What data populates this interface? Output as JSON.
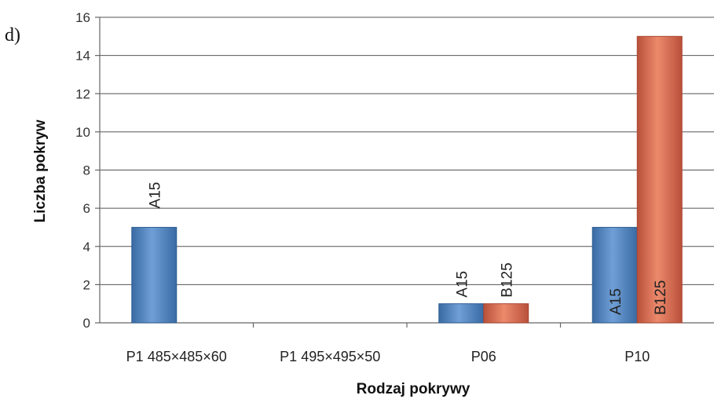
{
  "panel_label": "d)",
  "chart_data": {
    "type": "bar",
    "xlabel": "Rodzaj pokrywy",
    "ylabel": "Liczba pokryw",
    "ylim": [
      0,
      16
    ],
    "yticks": [
      0,
      2,
      4,
      6,
      8,
      10,
      12,
      14,
      16
    ],
    "grid": true,
    "categories": [
      "P1 485×485×60",
      "P1 495×495×50",
      "P06",
      "P10"
    ],
    "series": [
      {
        "color": "#4f81bd",
        "dark": "#2f5f93",
        "values": [
          5,
          0,
          1,
          5
        ],
        "labels": [
          "A15",
          "",
          "A15",
          "A15"
        ]
      },
      {
        "color": "#d36a4f",
        "dark": "#a84631",
        "values": [
          0,
          0,
          1,
          15
        ],
        "labels": [
          "",
          "",
          "B125",
          "B125"
        ]
      }
    ]
  }
}
